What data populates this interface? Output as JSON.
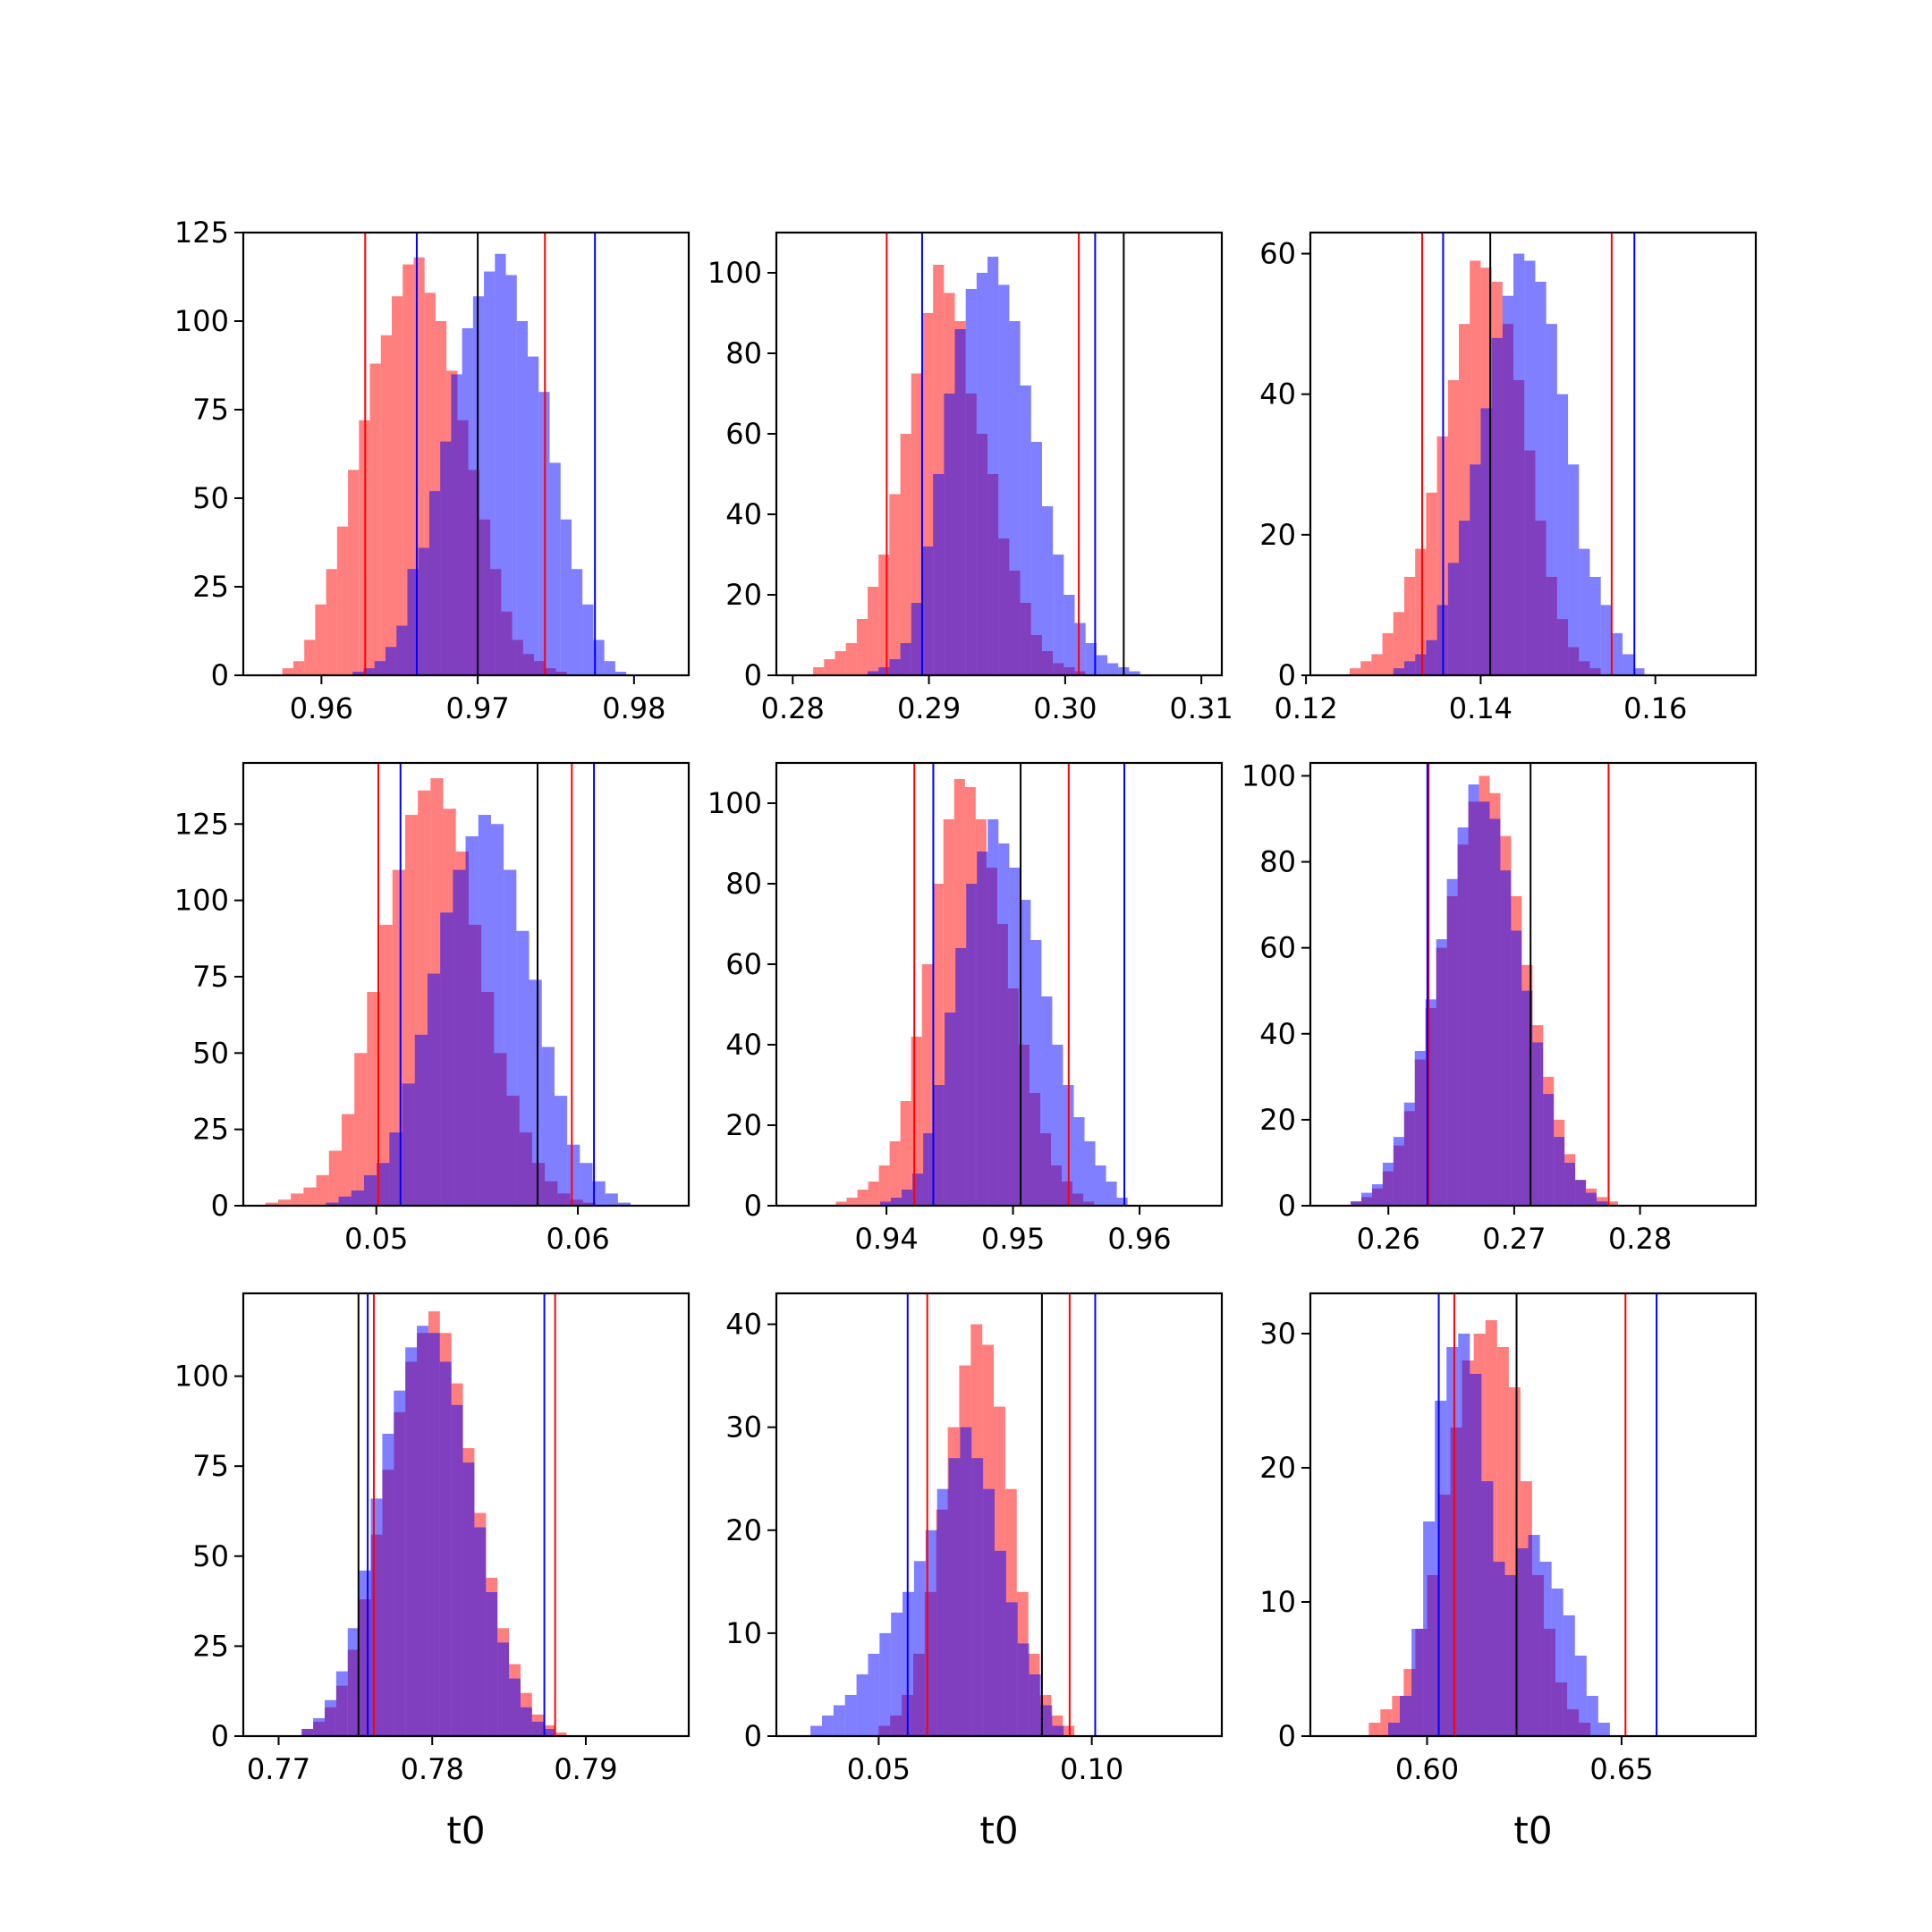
{
  "colors": {
    "red": "#ff0000",
    "blue": "#0000ff",
    "black": "#000000",
    "red_fill": "rgba(255,0,0,0.5)",
    "blue_fill": "rgba(0,0,255,0.5)"
  },
  "chart_data": [
    {
      "type": "bar",
      "xlim": [
        0.955,
        0.9835
      ],
      "ylim": [
        0,
        125
      ],
      "xticks": [
        {
          "v": 0.96,
          "label": "0.96"
        },
        {
          "v": 0.97,
          "label": "0.97"
        },
        {
          "v": 0.98,
          "label": "0.98"
        }
      ],
      "yticks": [
        {
          "v": 0,
          "label": "0"
        },
        {
          "v": 25,
          "label": "25"
        },
        {
          "v": 50,
          "label": "50"
        },
        {
          "v": 75,
          "label": "75"
        },
        {
          "v": 100,
          "label": "100"
        },
        {
          "v": 125,
          "label": "125"
        }
      ],
      "xlabel": "",
      "series": [
        {
          "color": "red",
          "x0": 0.9575,
          "width": 0.0007,
          "counts": [
            2,
            4,
            10,
            20,
            30,
            42,
            58,
            72,
            88,
            96,
            107,
            116,
            118,
            108,
            100,
            86,
            72,
            58,
            44,
            30,
            18,
            10,
            6,
            4,
            2,
            1
          ]
        },
        {
          "color": "blue",
          "x0": 0.962,
          "width": 0.0007,
          "counts": [
            1,
            2,
            4,
            8,
            14,
            30,
            36,
            52,
            66,
            85,
            98,
            107,
            114,
            119,
            113,
            100,
            90,
            80,
            60,
            44,
            30,
            20,
            10,
            4,
            1
          ]
        }
      ],
      "vlines": [
        {
          "x": 0.9628,
          "color": "red"
        },
        {
          "x": 0.9743,
          "color": "red"
        },
        {
          "x": 0.9661,
          "color": "blue"
        },
        {
          "x": 0.9775,
          "color": "blue"
        },
        {
          "x": 0.97,
          "color": "black"
        }
      ]
    },
    {
      "type": "bar",
      "xlim": [
        0.2788,
        0.3115
      ],
      "ylim": [
        0,
        110
      ],
      "xticks": [
        {
          "v": 0.28,
          "label": "0.28"
        },
        {
          "v": 0.29,
          "label": "0.29"
        },
        {
          "v": 0.3,
          "label": "0.30"
        },
        {
          "v": 0.31,
          "label": "0.31"
        }
      ],
      "yticks": [
        {
          "v": 0,
          "label": "0"
        },
        {
          "v": 20,
          "label": "20"
        },
        {
          "v": 40,
          "label": "40"
        },
        {
          "v": 60,
          "label": "60"
        },
        {
          "v": 80,
          "label": "80"
        },
        {
          "v": 100,
          "label": "100"
        }
      ],
      "xlabel": "",
      "series": [
        {
          "color": "red",
          "x0": 0.2815,
          "width": 0.0008,
          "counts": [
            2,
            4,
            6,
            8,
            14,
            22,
            30,
            45,
            60,
            75,
            90,
            102,
            95,
            88,
            70,
            60,
            50,
            34,
            26,
            18,
            10,
            6,
            3,
            2,
            1
          ]
        },
        {
          "color": "blue",
          "x0": 0.2855,
          "width": 0.0008,
          "counts": [
            1,
            2,
            4,
            8,
            18,
            32,
            50,
            70,
            86,
            96,
            100,
            104,
            97,
            88,
            72,
            58,
            42,
            30,
            20,
            13,
            8,
            5,
            3,
            2,
            1
          ]
        }
      ],
      "vlines": [
        {
          "x": 0.2869,
          "color": "red"
        },
        {
          "x": 0.301,
          "color": "red"
        },
        {
          "x": 0.2895,
          "color": "blue"
        },
        {
          "x": 0.3022,
          "color": "blue"
        },
        {
          "x": 0.3043,
          "color": "black"
        }
      ]
    },
    {
      "type": "bar",
      "xlim": [
        0.1205,
        0.1715
      ],
      "ylim": [
        0,
        63
      ],
      "xticks": [
        {
          "v": 0.12,
          "label": "0.12"
        },
        {
          "v": 0.14,
          "label": "0.14"
        },
        {
          "v": 0.16,
          "label": "0.16"
        }
      ],
      "yticks": [
        {
          "v": 0,
          "label": "0"
        },
        {
          "v": 20,
          "label": "20"
        },
        {
          "v": 40,
          "label": "40"
        },
        {
          "v": 60,
          "label": "60"
        }
      ],
      "xlabel": "",
      "series": [
        {
          "color": "red",
          "x0": 0.125,
          "width": 0.00125,
          "counts": [
            1,
            2,
            3,
            6,
            9,
            14,
            18,
            26,
            34,
            42,
            50,
            59,
            58,
            56,
            50,
            42,
            32,
            22,
            14,
            8,
            4,
            2,
            1
          ]
        },
        {
          "color": "blue",
          "x0": 0.13,
          "width": 0.00125,
          "counts": [
            1,
            2,
            3,
            5,
            10,
            16,
            22,
            30,
            38,
            48,
            54,
            60,
            59,
            56,
            50,
            40,
            30,
            18,
            14,
            10,
            6,
            3,
            1
          ]
        }
      ],
      "vlines": [
        {
          "x": 0.1333,
          "color": "red"
        },
        {
          "x": 0.155,
          "color": "red"
        },
        {
          "x": 0.1357,
          "color": "blue"
        },
        {
          "x": 0.1576,
          "color": "blue"
        },
        {
          "x": 0.1411,
          "color": "black"
        }
      ]
    },
    {
      "type": "bar",
      "xlim": [
        0.0434,
        0.0655
      ],
      "ylim": [
        0,
        145
      ],
      "xticks": [
        {
          "v": 0.05,
          "label": "0.05"
        },
        {
          "v": 0.06,
          "label": "0.06"
        }
      ],
      "yticks": [
        {
          "v": 0,
          "label": "0"
        },
        {
          "v": 25,
          "label": "25"
        },
        {
          "v": 50,
          "label": "50"
        },
        {
          "v": 75,
          "label": "75"
        },
        {
          "v": 100,
          "label": "100"
        },
        {
          "v": 125,
          "label": "125"
        }
      ],
      "xlabel": "",
      "series": [
        {
          "color": "red",
          "x0": 0.0445,
          "width": 0.00063,
          "counts": [
            1,
            2,
            4,
            6,
            10,
            18,
            30,
            50,
            70,
            92,
            110,
            128,
            136,
            140,
            130,
            116,
            92,
            70,
            50,
            36,
            24,
            14,
            8,
            4,
            2,
            1
          ]
        },
        {
          "color": "blue",
          "x0": 0.0475,
          "width": 0.00063,
          "counts": [
            1,
            3,
            5,
            10,
            14,
            24,
            40,
            56,
            76,
            96,
            110,
            121,
            128,
            125,
            110,
            90,
            74,
            52,
            36,
            20,
            14,
            8,
            4,
            1
          ]
        }
      ],
      "vlines": [
        {
          "x": 0.0501,
          "color": "red"
        },
        {
          "x": 0.0597,
          "color": "red"
        },
        {
          "x": 0.0512,
          "color": "blue"
        },
        {
          "x": 0.0608,
          "color": "blue"
        },
        {
          "x": 0.058,
          "color": "black"
        }
      ]
    },
    {
      "type": "bar",
      "xlim": [
        0.9313,
        0.9665
      ],
      "ylim": [
        0,
        110
      ],
      "xticks": [
        {
          "v": 0.94,
          "label": "0.94"
        },
        {
          "v": 0.95,
          "label": "0.95"
        },
        {
          "v": 0.96,
          "label": "0.96"
        }
      ],
      "yticks": [
        {
          "v": 0,
          "label": "0"
        },
        {
          "v": 20,
          "label": "20"
        },
        {
          "v": 40,
          "label": "40"
        },
        {
          "v": 60,
          "label": "60"
        },
        {
          "v": 80,
          "label": "80"
        },
        {
          "v": 100,
          "label": "100"
        }
      ],
      "xlabel": "",
      "series": [
        {
          "color": "red",
          "x0": 0.936,
          "width": 0.00085,
          "counts": [
            1,
            2,
            4,
            6,
            10,
            16,
            26,
            42,
            60,
            80,
            96,
            106,
            104,
            96,
            84,
            70,
            54,
            40,
            28,
            18,
            10,
            6,
            3,
            1
          ]
        },
        {
          "color": "blue",
          "x0": 0.9395,
          "width": 0.00085,
          "counts": [
            1,
            2,
            4,
            8,
            18,
            30,
            48,
            64,
            80,
            88,
            96,
            90,
            84,
            76,
            66,
            52,
            40,
            30,
            22,
            16,
            10,
            6,
            2
          ]
        }
      ],
      "vlines": [
        {
          "x": 0.9422,
          "color": "red"
        },
        {
          "x": 0.9544,
          "color": "red"
        },
        {
          "x": 0.9437,
          "color": "blue"
        },
        {
          "x": 0.9588,
          "color": "blue"
        },
        {
          "x": 0.9506,
          "color": "black"
        }
      ]
    },
    {
      "type": "bar",
      "xlim": [
        0.2538,
        0.2892
      ],
      "ylim": [
        0,
        103
      ],
      "xticks": [
        {
          "v": 0.26,
          "label": "0.26"
        },
        {
          "v": 0.27,
          "label": "0.27"
        },
        {
          "v": 0.28,
          "label": "0.28"
        }
      ],
      "yticks": [
        {
          "v": 0,
          "label": "0"
        },
        {
          "v": 20,
          "label": "20"
        },
        {
          "v": 40,
          "label": "40"
        },
        {
          "v": 60,
          "label": "60"
        },
        {
          "v": 80,
          "label": "80"
        },
        {
          "v": 100,
          "label": "100"
        }
      ],
      "xlabel": "",
      "series": [
        {
          "color": "red",
          "x0": 0.257,
          "width": 0.00085,
          "counts": [
            1,
            2,
            4,
            8,
            14,
            22,
            34,
            46,
            60,
            72,
            84,
            94,
            100,
            96,
            86,
            72,
            56,
            42,
            30,
            20,
            12,
            6,
            4,
            2,
            1
          ]
        },
        {
          "color": "blue",
          "x0": 0.257,
          "width": 0.00085,
          "counts": [
            1,
            3,
            5,
            10,
            16,
            24,
            36,
            48,
            62,
            76,
            88,
            98,
            94,
            90,
            78,
            64,
            50,
            38,
            26,
            16,
            10,
            6,
            3,
            1
          ]
        }
      ],
      "vlines": [
        {
          "x": 0.2632,
          "color": "red"
        },
        {
          "x": 0.2775,
          "color": "red"
        },
        {
          "x": 0.2631,
          "color": "blue"
        },
        {
          "x": 0.2713,
          "color": "black"
        }
      ]
    },
    {
      "type": "bar",
      "xlim": [
        0.7677,
        0.7967
      ],
      "ylim": [
        0,
        123
      ],
      "xticks": [
        {
          "v": 0.77,
          "label": "0.77"
        },
        {
          "v": 0.78,
          "label": "0.78"
        },
        {
          "v": 0.79,
          "label": "0.79"
        }
      ],
      "yticks": [
        {
          "v": 0,
          "label": "0"
        },
        {
          "v": 25,
          "label": "25"
        },
        {
          "v": 50,
          "label": "50"
        },
        {
          "v": 75,
          "label": "75"
        },
        {
          "v": 100,
          "label": "100"
        }
      ],
      "xlabel": "t0",
      "series": [
        {
          "color": "red",
          "x0": 0.7715,
          "width": 0.00075,
          "counts": [
            2,
            4,
            8,
            14,
            24,
            38,
            56,
            74,
            90,
            104,
            112,
            118,
            112,
            98,
            80,
            62,
            44,
            30,
            20,
            12,
            6,
            3,
            1
          ]
        },
        {
          "color": "blue",
          "x0": 0.7715,
          "width": 0.00075,
          "counts": [
            2,
            5,
            10,
            18,
            30,
            46,
            66,
            84,
            96,
            108,
            114,
            112,
            104,
            92,
            76,
            58,
            40,
            26,
            16,
            8,
            4,
            2
          ]
        }
      ],
      "vlines": [
        {
          "x": 0.7762,
          "color": "red"
        },
        {
          "x": 0.788,
          "color": "red"
        },
        {
          "x": 0.7758,
          "color": "blue"
        },
        {
          "x": 0.7873,
          "color": "blue"
        },
        {
          "x": 0.7752,
          "color": "black"
        }
      ]
    },
    {
      "type": "bar",
      "xlim": [
        0.026,
        0.1305
      ],
      "ylim": [
        0,
        43
      ],
      "xticks": [
        {
          "v": 0.05,
          "label": "0.05"
        },
        {
          "v": 0.1,
          "label": "0.10"
        }
      ],
      "yticks": [
        {
          "v": 0,
          "label": "0"
        },
        {
          "v": 10,
          "label": "10"
        },
        {
          "v": 20,
          "label": "20"
        },
        {
          "v": 30,
          "label": "30"
        },
        {
          "v": 40,
          "label": "40"
        }
      ],
      "xlabel": "t0",
      "series": [
        {
          "color": "red",
          "x0": 0.05,
          "width": 0.0027,
          "counts": [
            1,
            2,
            4,
            8,
            14,
            22,
            30,
            36,
            40,
            38,
            32,
            24,
            14,
            8,
            4,
            2,
            1
          ]
        },
        {
          "color": "blue",
          "x0": 0.034,
          "width": 0.0027,
          "counts": [
            1,
            2,
            3,
            4,
            6,
            8,
            10,
            12,
            14,
            17,
            20,
            24,
            27,
            30,
            27,
            24,
            18,
            13,
            9,
            6,
            3,
            1
          ]
        }
      ],
      "vlines": [
        {
          "x": 0.0614,
          "color": "red"
        },
        {
          "x": 0.0948,
          "color": "red"
        },
        {
          "x": 0.0568,
          "color": "blue"
        },
        {
          "x": 0.1008,
          "color": "blue"
        },
        {
          "x": 0.0883,
          "color": "black"
        }
      ]
    },
    {
      "type": "bar",
      "xlim": [
        0.57,
        0.6845
      ],
      "ylim": [
        0,
        33
      ],
      "xticks": [
        {
          "v": 0.6,
          "label": "0.60"
        },
        {
          "v": 0.65,
          "label": "0.65"
        }
      ],
      "yticks": [
        {
          "v": 0,
          "label": "0"
        },
        {
          "v": 10,
          "label": "10"
        },
        {
          "v": 20,
          "label": "20"
        },
        {
          "v": 30,
          "label": "30"
        }
      ],
      "xlabel": "t0",
      "series": [
        {
          "color": "red",
          "x0": 0.585,
          "width": 0.003,
          "counts": [
            1,
            2,
            3,
            5,
            8,
            12,
            18,
            23,
            28,
            30,
            31,
            29,
            26,
            19,
            12,
            8,
            4,
            2,
            1
          ]
        },
        {
          "color": "blue",
          "x0": 0.59,
          "width": 0.003,
          "counts": [
            1,
            3,
            8,
            16,
            25,
            29,
            30,
            27,
            19,
            13,
            12,
            14,
            15,
            13,
            11,
            9,
            6,
            3,
            1
          ]
        }
      ],
      "vlines": [
        {
          "x": 0.607,
          "color": "red"
        },
        {
          "x": 0.651,
          "color": "red"
        },
        {
          "x": 0.603,
          "color": "blue"
        },
        {
          "x": 0.659,
          "color": "blue"
        },
        {
          "x": 0.623,
          "color": "black"
        }
      ]
    }
  ]
}
